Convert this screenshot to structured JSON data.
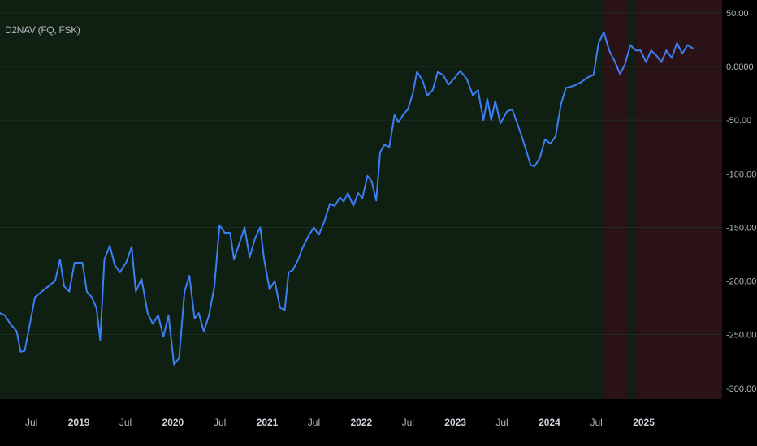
{
  "indicator": {
    "label": "D2NAV (FQ, FSK)"
  },
  "colors": {
    "background": "#000000",
    "green_zone": "#0f1f12",
    "red_zone": "#2b1216",
    "line": "#3d7ef5",
    "grid": "#1e2e22",
    "axis_text": "#b2b5be",
    "axis_text_bold": "#d1d4dc"
  },
  "chart_data": {
    "type": "line",
    "title": "D2NAV (FQ, FSK)",
    "xlabel": "",
    "ylabel": "",
    "ylim": [
      -310,
      62
    ],
    "grid": true,
    "y_ticks": [
      {
        "value": 50,
        "label": "50.00"
      },
      {
        "value": 0,
        "label": "0.0000"
      },
      {
        "value": -50,
        "label": "-50.00"
      },
      {
        "value": -100,
        "label": "-100.00"
      },
      {
        "value": -150,
        "label": "-150.00"
      },
      {
        "value": -200,
        "label": "-200.00"
      },
      {
        "value": -250,
        "label": "-250.00"
      },
      {
        "value": -300,
        "label": "-300.00"
      }
    ],
    "x_ticks": [
      {
        "date": "2018-07",
        "label": "Jul",
        "bold": false
      },
      {
        "date": "2019-01",
        "label": "2019",
        "bold": true
      },
      {
        "date": "2019-07",
        "label": "Jul",
        "bold": false
      },
      {
        "date": "2020-01",
        "label": "2020",
        "bold": true
      },
      {
        "date": "2020-07",
        "label": "Jul",
        "bold": false
      },
      {
        "date": "2021-01",
        "label": "2021",
        "bold": true
      },
      {
        "date": "2021-07",
        "label": "Jul",
        "bold": false
      },
      {
        "date": "2022-01",
        "label": "2022",
        "bold": true
      },
      {
        "date": "2022-07",
        "label": "Jul",
        "bold": false
      },
      {
        "date": "2023-01",
        "label": "2023",
        "bold": true
      },
      {
        "date": "2023-07",
        "label": "Jul",
        "bold": false
      },
      {
        "date": "2024-01",
        "label": "2024",
        "bold": true
      },
      {
        "date": "2024-07",
        "label": "Jul",
        "bold": false
      },
      {
        "date": "2025-01",
        "label": "2025",
        "bold": true
      }
    ],
    "x_range": [
      "2018-03",
      "2025-11"
    ],
    "shaded_zones": [
      {
        "from": "2018-03",
        "to": "2024-08",
        "color": "green"
      },
      {
        "from": "2024-08",
        "to": "2024-11",
        "color": "red"
      },
      {
        "from": "2024-11",
        "to": "2024-12",
        "color": "green"
      },
      {
        "from": "2024-12",
        "to": "2025-11",
        "color": "red"
      }
    ],
    "series": [
      {
        "points": [
          [
            "2018-03-01",
            -230
          ],
          [
            "2018-03-20",
            -232
          ],
          [
            "2018-04-10",
            -240
          ],
          [
            "2018-05-05",
            -247
          ],
          [
            "2018-05-20",
            -266
          ],
          [
            "2018-06-05",
            -265
          ],
          [
            "2018-07-15",
            -215
          ],
          [
            "2018-08-10",
            -210
          ],
          [
            "2018-09-10",
            -204
          ],
          [
            "2018-10-01",
            -200
          ],
          [
            "2018-10-20",
            -180
          ],
          [
            "2018-11-05",
            -205
          ],
          [
            "2018-11-25",
            -210
          ],
          [
            "2018-12-15",
            -183
          ],
          [
            "2019-01-15",
            -183
          ],
          [
            "2019-02-01",
            -210
          ],
          [
            "2019-02-20",
            -215
          ],
          [
            "2019-03-10",
            -225
          ],
          [
            "2019-03-25",
            -255
          ],
          [
            "2019-04-10",
            -180
          ],
          [
            "2019-05-01",
            -167
          ],
          [
            "2019-05-20",
            -185
          ],
          [
            "2019-06-10",
            -192
          ],
          [
            "2019-07-05",
            -182
          ],
          [
            "2019-07-25",
            -168
          ],
          [
            "2019-08-10",
            -210
          ],
          [
            "2019-09-01",
            -198
          ],
          [
            "2019-09-25",
            -230
          ],
          [
            "2019-10-15",
            -240
          ],
          [
            "2019-11-05",
            -232
          ],
          [
            "2019-11-25",
            -252
          ],
          [
            "2019-12-15",
            -232
          ],
          [
            "2020-01-05",
            -278
          ],
          [
            "2020-01-25",
            -272
          ],
          [
            "2020-02-15",
            -210
          ],
          [
            "2020-03-05",
            -195
          ],
          [
            "2020-03-25",
            -235
          ],
          [
            "2020-04-10",
            -230
          ],
          [
            "2020-04-30",
            -247
          ],
          [
            "2020-05-20",
            -232
          ],
          [
            "2020-06-10",
            -205
          ],
          [
            "2020-06-30",
            -148
          ],
          [
            "2020-07-20",
            -155
          ],
          [
            "2020-08-10",
            -155
          ],
          [
            "2020-08-25",
            -180
          ],
          [
            "2020-09-15",
            -165
          ],
          [
            "2020-10-05",
            -150
          ],
          [
            "2020-10-25",
            -178
          ],
          [
            "2020-11-15",
            -160
          ],
          [
            "2020-12-05",
            -150
          ],
          [
            "2020-12-20",
            -180
          ],
          [
            "2021-01-10",
            -208
          ],
          [
            "2021-01-30",
            -200
          ],
          [
            "2021-02-20",
            -225
          ],
          [
            "2021-03-10",
            -227
          ],
          [
            "2021-03-25",
            -192
          ],
          [
            "2021-04-10",
            -190
          ],
          [
            "2021-05-01",
            -180
          ],
          [
            "2021-05-20",
            -168
          ],
          [
            "2021-06-10",
            -158
          ],
          [
            "2021-07-01",
            -150
          ],
          [
            "2021-07-20",
            -157
          ],
          [
            "2021-08-10",
            -145
          ],
          [
            "2021-09-01",
            -128
          ],
          [
            "2021-09-20",
            -130
          ],
          [
            "2021-10-10",
            -122
          ],
          [
            "2021-10-25",
            -126
          ],
          [
            "2021-11-10",
            -118
          ],
          [
            "2021-12-01",
            -130
          ],
          [
            "2021-12-20",
            -118
          ],
          [
            "2022-01-05",
            -123
          ],
          [
            "2022-01-25",
            -102
          ],
          [
            "2022-02-10",
            -107
          ],
          [
            "2022-02-28",
            -125
          ],
          [
            "2022-03-15",
            -80
          ],
          [
            "2022-04-01",
            -73
          ],
          [
            "2022-04-20",
            -75
          ],
          [
            "2022-05-10",
            -45
          ],
          [
            "2022-05-25",
            -52
          ],
          [
            "2022-06-15",
            -44
          ],
          [
            "2022-07-01",
            -40
          ],
          [
            "2022-07-20",
            -25
          ],
          [
            "2022-08-05",
            -5
          ],
          [
            "2022-08-25",
            -12
          ],
          [
            "2022-09-15",
            -27
          ],
          [
            "2022-10-05",
            -22
          ],
          [
            "2022-10-25",
            -5
          ],
          [
            "2022-11-15",
            -8
          ],
          [
            "2022-12-05",
            -17
          ],
          [
            "2023-01-01",
            -10
          ],
          [
            "2023-01-20",
            -4
          ],
          [
            "2023-02-15",
            -12
          ],
          [
            "2023-03-10",
            -27
          ],
          [
            "2023-03-30",
            -22
          ],
          [
            "2023-04-20",
            -50
          ],
          [
            "2023-05-05",
            -30
          ],
          [
            "2023-05-20",
            -50
          ],
          [
            "2023-06-05",
            -32
          ],
          [
            "2023-06-25",
            -53
          ],
          [
            "2023-07-20",
            -42
          ],
          [
            "2023-08-10",
            -40
          ],
          [
            "2023-09-01",
            -55
          ],
          [
            "2023-09-25",
            -72
          ],
          [
            "2023-10-20",
            -92
          ],
          [
            "2023-11-05",
            -93
          ],
          [
            "2023-11-25",
            -85
          ],
          [
            "2023-12-15",
            -68
          ],
          [
            "2024-01-05",
            -72
          ],
          [
            "2024-01-25",
            -65
          ],
          [
            "2024-02-15",
            -35
          ],
          [
            "2024-03-05",
            -20
          ],
          [
            "2024-04-05",
            -18
          ],
          [
            "2024-05-01",
            -15
          ],
          [
            "2024-05-30",
            -10
          ],
          [
            "2024-06-20",
            -8
          ],
          [
            "2024-07-10",
            22
          ],
          [
            "2024-07-30",
            32
          ],
          [
            "2024-08-20",
            15
          ],
          [
            "2024-09-10",
            5
          ],
          [
            "2024-10-01",
            -7
          ],
          [
            "2024-10-20",
            2
          ],
          [
            "2024-11-10",
            20
          ],
          [
            "2024-12-01",
            15
          ],
          [
            "2024-12-20",
            15
          ],
          [
            "2025-01-10",
            4
          ],
          [
            "2025-01-30",
            15
          ],
          [
            "2025-02-20",
            10
          ],
          [
            "2025-03-10",
            4
          ],
          [
            "2025-03-30",
            15
          ],
          [
            "2025-04-20",
            8
          ],
          [
            "2025-05-10",
            22
          ],
          [
            "2025-05-30",
            12
          ],
          [
            "2025-06-20",
            20
          ],
          [
            "2025-07-10",
            17
          ]
        ]
      }
    ]
  }
}
